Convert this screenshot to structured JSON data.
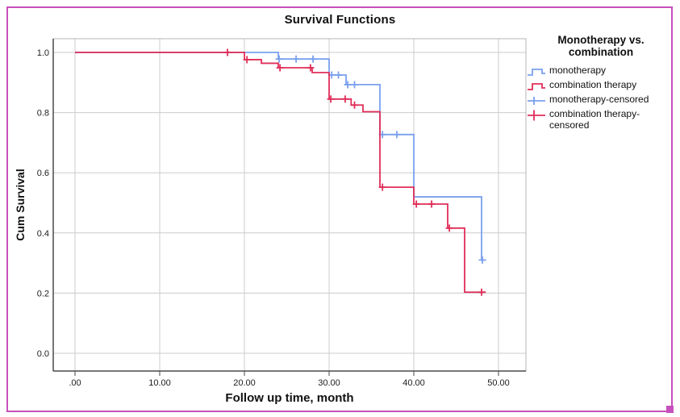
{
  "window": {
    "border_color": "#c750bd"
  },
  "chart": {
    "title": "Survival Functions",
    "x_axis": {
      "label": "Follow up time, month",
      "ticks": [
        ".00",
        "10.00",
        "20.00",
        "30.00",
        "40.00",
        "50.00"
      ]
    },
    "y_axis": {
      "label": "Cum Survival",
      "ticks": [
        "0.0",
        "0.2",
        "0.4",
        "0.6",
        "0.8",
        "1.0"
      ]
    },
    "legend": {
      "title_line1": "Monotherapy vs.",
      "title_line2": "combination",
      "items": [
        {
          "label": "monotherapy",
          "symbol": "step",
          "color": "#7aa0ee"
        },
        {
          "label": "combination therapy",
          "symbol": "step",
          "color": "#e02e59"
        },
        {
          "label": "monotherapy-censored",
          "symbol": "plus",
          "color": "#7aa0ee"
        },
        {
          "label": "combination therapy-censored",
          "symbol": "plus",
          "color": "#e02e59"
        }
      ]
    }
  },
  "chart_data": {
    "type": "line",
    "subtype": "kaplan_meier_step",
    "title": "Survival Functions",
    "xlabel": "Follow up time, month",
    "ylabel": "Cum Survival",
    "xlim": [
      0,
      50
    ],
    "ylim": [
      0.0,
      1.0
    ],
    "xticks": [
      0,
      10,
      20,
      30,
      40,
      50
    ],
    "yticks": [
      0.0,
      0.2,
      0.4,
      0.6,
      0.8,
      1.0
    ],
    "grid": true,
    "legend_position": "right",
    "legend_title": "Monotherapy vs. combination",
    "grid_color": "#cccccc",
    "frame_color": "#b4b4b4",
    "axis_color": "#4a4a4a",
    "series": [
      {
        "name": "monotherapy",
        "color": "#7aa0ee",
        "steps": [
          [
            0,
            1.0
          ],
          [
            24,
            1.0
          ],
          [
            24,
            0.978
          ],
          [
            30,
            0.978
          ],
          [
            30,
            0.925
          ],
          [
            32,
            0.925
          ],
          [
            32,
            0.893
          ],
          [
            36,
            0.893
          ],
          [
            36,
            0.727
          ],
          [
            40,
            0.727
          ],
          [
            40,
            0.52
          ],
          [
            48,
            0.52
          ],
          [
            48,
            0.31
          ],
          [
            48.3,
            0.31
          ]
        ],
        "censored": [
          [
            24.1,
            0.978
          ],
          [
            26.1,
            0.978
          ],
          [
            28.1,
            0.978
          ],
          [
            30.3,
            0.925
          ],
          [
            31.1,
            0.925
          ],
          [
            32.2,
            0.893
          ],
          [
            33.0,
            0.893
          ],
          [
            36.3,
            0.727
          ],
          [
            38.0,
            0.727
          ],
          [
            48.1,
            0.31
          ]
        ]
      },
      {
        "name": "combination therapy",
        "color": "#e02e59",
        "steps": [
          [
            0,
            1.0
          ],
          [
            20,
            1.0
          ],
          [
            20,
            0.976
          ],
          [
            22,
            0.976
          ],
          [
            22,
            0.964
          ],
          [
            24,
            0.964
          ],
          [
            24,
            0.949
          ],
          [
            28,
            0.949
          ],
          [
            28,
            0.933
          ],
          [
            30,
            0.933
          ],
          [
            30,
            0.845
          ],
          [
            32.6,
            0.845
          ],
          [
            32.6,
            0.825
          ],
          [
            34,
            0.825
          ],
          [
            34,
            0.803
          ],
          [
            36,
            0.803
          ],
          [
            36,
            0.552
          ],
          [
            40,
            0.552
          ],
          [
            40,
            0.496
          ],
          [
            44,
            0.496
          ],
          [
            44,
            0.416
          ],
          [
            46,
            0.416
          ],
          [
            46,
            0.203
          ],
          [
            48.5,
            0.203
          ]
        ],
        "censored": [
          [
            18,
            1.0
          ],
          [
            20.3,
            0.976
          ],
          [
            24.2,
            0.949
          ],
          [
            27.8,
            0.949
          ],
          [
            30.2,
            0.845
          ],
          [
            31.9,
            0.845
          ],
          [
            33.0,
            0.825
          ],
          [
            36.3,
            0.552
          ],
          [
            40.3,
            0.496
          ],
          [
            42.1,
            0.496
          ],
          [
            44.2,
            0.416
          ],
          [
            48.0,
            0.203
          ]
        ]
      }
    ]
  }
}
